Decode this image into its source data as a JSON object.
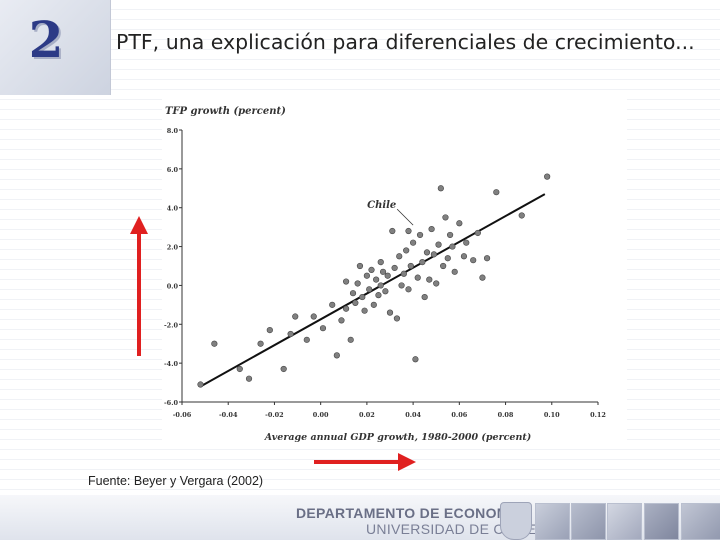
{
  "slide": {
    "number": "2",
    "title": "PTF, una explicación para diferenciales de crecimiento...",
    "source": "Fuente: Beyer y Vergara (2002)"
  },
  "footer": {
    "department": "DEPARTAMENTO DE ECONOMIA",
    "university": "UNIVERSIDAD DE CHILE"
  },
  "colors": {
    "accent": "#2c3a86",
    "arrow": "#e02020",
    "marker": "#808080"
  },
  "icons": [
    "red-arrow-up-icon",
    "red-arrow-right-icon",
    "university-seal-icon"
  ],
  "chart_data": {
    "type": "scatter",
    "ylabel": "TFP growth (percent)",
    "xlabel": "Average annual GDP growth, 1980-2000 (percent)",
    "xlim": [
      -0.06,
      0.12
    ],
    "ylim": [
      -6.0,
      8.0
    ],
    "xticks": [
      "-0.06",
      "-0.04",
      "-0.02",
      "0.00",
      "0.02",
      "0.04",
      "0.06",
      "0.08",
      "0.10",
      "0.12"
    ],
    "yticks": [
      "8.0",
      "6.0",
      "4.0",
      "2.0",
      "0.0",
      "-2.0",
      "-4.0",
      "-6.0"
    ],
    "annotation": {
      "text": "Chile",
      "x": 0.04,
      "y": 3.0
    },
    "trend_line": {
      "x": [
        -0.052,
        0.097
      ],
      "y": [
        -5.2,
        4.7
      ]
    },
    "points": [
      [
        -0.052,
        -5.1
      ],
      [
        -0.035,
        -4.3
      ],
      [
        -0.031,
        -4.8
      ],
      [
        -0.026,
        -3.0
      ],
      [
        -0.022,
        -2.3
      ],
      [
        -0.016,
        -4.3
      ],
      [
        -0.013,
        -2.5
      ],
      [
        -0.011,
        -1.6
      ],
      [
        -0.006,
        -2.8
      ],
      [
        -0.003,
        -1.6
      ],
      [
        0.001,
        -2.2
      ],
      [
        0.005,
        -1.0
      ],
      [
        0.007,
        -3.6
      ],
      [
        0.009,
        -1.8
      ],
      [
        0.011,
        -1.2
      ],
      [
        0.011,
        0.2
      ],
      [
        0.013,
        -2.8
      ],
      [
        0.014,
        -0.4
      ],
      [
        0.015,
        -0.9
      ],
      [
        0.016,
        0.1
      ],
      [
        0.017,
        1.0
      ],
      [
        0.018,
        -0.6
      ],
      [
        0.019,
        -1.3
      ],
      [
        0.02,
        0.5
      ],
      [
        0.021,
        -0.2
      ],
      [
        0.022,
        0.8
      ],
      [
        0.023,
        -1.0
      ],
      [
        0.024,
        0.3
      ],
      [
        0.025,
        -0.5
      ],
      [
        0.026,
        1.2
      ],
      [
        0.026,
        0.0
      ],
      [
        0.027,
        0.7
      ],
      [
        0.028,
        -0.3
      ],
      [
        0.029,
        0.5
      ],
      [
        0.03,
        -1.4
      ],
      [
        0.031,
        2.8
      ],
      [
        0.032,
        0.9
      ],
      [
        0.033,
        -1.7
      ],
      [
        0.034,
        1.5
      ],
      [
        0.035,
        0.0
      ],
      [
        0.036,
        0.6
      ],
      [
        0.037,
        1.8
      ],
      [
        0.038,
        -0.2
      ],
      [
        0.039,
        1.0
      ],
      [
        0.04,
        2.2
      ],
      [
        0.041,
        -3.8
      ],
      [
        0.042,
        0.4
      ],
      [
        0.043,
        2.6
      ],
      [
        0.044,
        1.2
      ],
      [
        0.045,
        -0.6
      ],
      [
        0.046,
        1.7
      ],
      [
        0.047,
        0.3
      ],
      [
        0.048,
        2.9
      ],
      [
        0.049,
        1.6
      ],
      [
        0.05,
        0.1
      ],
      [
        0.051,
        2.1
      ],
      [
        0.052,
        5.0
      ],
      [
        0.053,
        1.0
      ],
      [
        0.054,
        3.5
      ],
      [
        0.055,
        1.4
      ],
      [
        0.056,
        2.6
      ],
      [
        0.057,
        2.0
      ],
      [
        0.058,
        0.7
      ],
      [
        0.06,
        3.2
      ],
      [
        0.062,
        1.5
      ],
      [
        0.063,
        2.2
      ],
      [
        0.066,
        1.3
      ],
      [
        0.068,
        2.7
      ],
      [
        0.07,
        0.4
      ],
      [
        0.072,
        1.4
      ],
      [
        0.076,
        4.8
      ],
      [
        0.087,
        3.6
      ],
      [
        0.098,
        5.6
      ],
      [
        -0.046,
        -3.0
      ],
      [
        0.038,
        2.8
      ]
    ]
  }
}
